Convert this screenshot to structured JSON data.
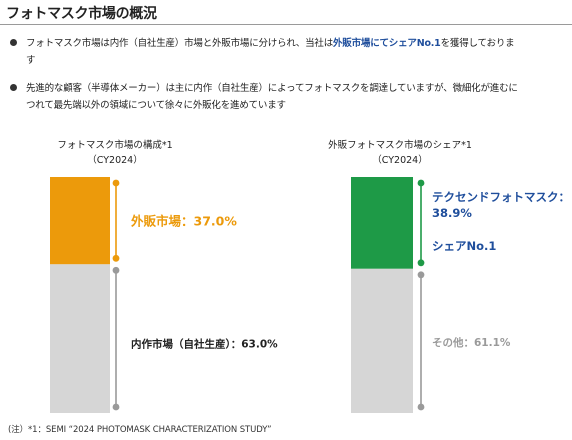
{
  "page": {
    "title": "フォトマスク市場の概況",
    "bullets": [
      {
        "before": "フォトマスク市場は内作（自社生産）市場と外販市場に分けられ、当社は",
        "highlight": "外販市場にてシェアNo.1",
        "after": "を獲得しておりま",
        "line2": "す"
      },
      {
        "line1": "先進的な顧客（半導体メーカー）は主に内作（自社生産）によってフォトマスクを調達していますが、微細化が進むに",
        "line2": "つれて最先端以外の領域について徐々に外販化を進めています"
      }
    ],
    "footnote": "(注）*1：SEMI “2024 PHOTOMASK CHARACTERIZATION STUDY”"
  },
  "colors": {
    "orange": "#ec9a0b",
    "green": "#1e9a47",
    "gray_bar": "#d6d6d6",
    "gray_text": "#9a9a9a",
    "blue_text": "#1f4e9c"
  },
  "chart_data": [
    {
      "type": "stacked-bar",
      "title": "フォトマスク市場の構成*1",
      "subtitle": "（CY2024）",
      "unit": "%",
      "segments": [
        {
          "label": "外販市場",
          "value": 37.0,
          "value_text": "：37.0%",
          "color": "#ec9a0b"
        },
        {
          "label": "内作市場（自社生産）",
          "value": 63.0,
          "value_text": "：63.0%",
          "color": "#d6d6d6"
        }
      ]
    },
    {
      "type": "stacked-bar",
      "title": "外販フォトマスク市場のシェア*1",
      "subtitle": "（CY2024）",
      "unit": "%",
      "segments": [
        {
          "label": "テクセンドフォトマスク：",
          "value": 38.9,
          "value_text": "38.9%",
          "extra": "シェアNo.1",
          "color": "#1e9a47"
        },
        {
          "label": "その他",
          "value": 61.1,
          "value_text": "：61.1%",
          "color": "#d6d6d6"
        }
      ]
    }
  ]
}
